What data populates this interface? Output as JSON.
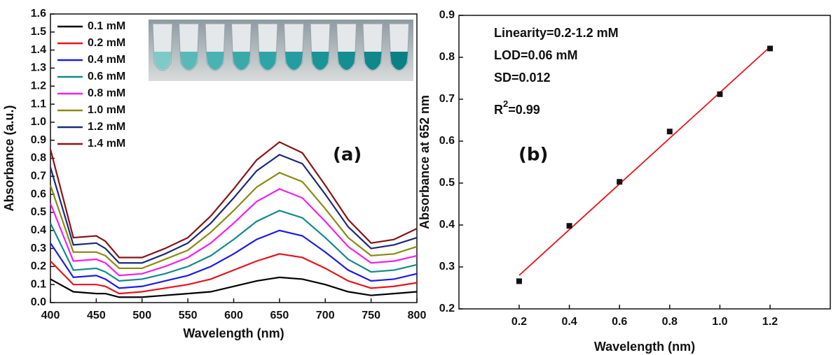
{
  "chart_data": [
    {
      "type": "line",
      "panel_label": "(a)",
      "x_label": "Wavelength (nm)",
      "y_label": "Absorbance (a.u.)",
      "x": [
        400,
        425,
        450,
        460,
        475,
        500,
        525,
        550,
        575,
        600,
        625,
        650,
        675,
        700,
        725,
        750,
        775,
        800
      ],
      "series": [
        {
          "name": "0.1 mM",
          "color": "#000000",
          "values": [
            0.13,
            0.06,
            0.05,
            0.05,
            0.03,
            0.03,
            0.04,
            0.05,
            0.06,
            0.09,
            0.12,
            0.14,
            0.13,
            0.1,
            0.06,
            0.04,
            0.05,
            0.06
          ]
        },
        {
          "name": "0.2 mM",
          "color": "#e8141c",
          "values": [
            0.23,
            0.1,
            0.1,
            0.09,
            0.05,
            0.06,
            0.08,
            0.1,
            0.13,
            0.18,
            0.23,
            0.27,
            0.25,
            0.19,
            0.12,
            0.08,
            0.09,
            0.11
          ]
        },
        {
          "name": "0.4 mM",
          "color": "#1c1ce8",
          "values": [
            0.33,
            0.14,
            0.15,
            0.13,
            0.08,
            0.09,
            0.12,
            0.15,
            0.2,
            0.27,
            0.35,
            0.4,
            0.37,
            0.28,
            0.18,
            0.12,
            0.13,
            0.16
          ]
        },
        {
          "name": "0.6 mM",
          "color": "#138a8a",
          "values": [
            0.44,
            0.18,
            0.19,
            0.17,
            0.12,
            0.13,
            0.16,
            0.2,
            0.26,
            0.35,
            0.45,
            0.51,
            0.47,
            0.36,
            0.24,
            0.17,
            0.18,
            0.21
          ]
        },
        {
          "name": "0.8 mM",
          "color": "#f020f0",
          "values": [
            0.55,
            0.23,
            0.24,
            0.22,
            0.15,
            0.16,
            0.2,
            0.25,
            0.33,
            0.44,
            0.56,
            0.63,
            0.58,
            0.45,
            0.31,
            0.22,
            0.23,
            0.26
          ]
        },
        {
          "name": "1.0 mM",
          "color": "#8a8a14",
          "values": [
            0.65,
            0.28,
            0.28,
            0.26,
            0.19,
            0.19,
            0.24,
            0.29,
            0.39,
            0.51,
            0.64,
            0.72,
            0.67,
            0.52,
            0.36,
            0.26,
            0.27,
            0.31
          ]
        },
        {
          "name": "1.2 mM",
          "color": "#1a2a7a",
          "values": [
            0.75,
            0.32,
            0.33,
            0.3,
            0.22,
            0.22,
            0.27,
            0.33,
            0.44,
            0.58,
            0.73,
            0.82,
            0.77,
            0.6,
            0.42,
            0.3,
            0.32,
            0.36
          ]
        },
        {
          "name": "1.4 mM",
          "color": "#8a1414",
          "values": [
            0.85,
            0.36,
            0.37,
            0.34,
            0.25,
            0.25,
            0.3,
            0.36,
            0.48,
            0.63,
            0.79,
            0.89,
            0.83,
            0.65,
            0.46,
            0.33,
            0.35,
            0.41
          ]
        }
      ],
      "xlim": [
        400,
        800
      ],
      "xticks": [
        400,
        450,
        500,
        550,
        600,
        650,
        700,
        750,
        800
      ],
      "ylim": [
        0,
        1.6
      ],
      "yticks": [
        {
          "value": 0,
          "label": "0.0"
        },
        0.1,
        0.2,
        0.3,
        0.4,
        0.5,
        0.6,
        0.7,
        0.8,
        0.9,
        {
          "value": 1,
          "label": "1.0"
        },
        1.1,
        1.2,
        1.3,
        1.4,
        1.5,
        1.6
      ],
      "legend": "upper left"
    },
    {
      "type": "scatter",
      "panel_label": "(b)",
      "x_label": "Wavelength (nm)",
      "y_label": "Absorbance at 652 nm",
      "annotations": [
        "Linearity=0.2-1.2 mM",
        "LOD=0.06 mM",
        "SD=0.012"
      ],
      "r_squared": {
        "base": "R",
        "sup": "2",
        "rest": "=0.99"
      },
      "x": [
        0.2,
        0.4,
        0.6,
        0.8,
        1.0,
        1.2
      ],
      "values": [
        0.266,
        0.398,
        0.503,
        0.623,
        0.712,
        0.821
      ],
      "color": "#111111",
      "fit_line": {
        "x": [
          0.2,
          1.2
        ],
        "values": [
          0.28,
          0.825
        ],
        "color": "#e8141c"
      },
      "xlim": [
        -0.04,
        1.44
      ],
      "xticks": [
        0.2,
        0.4,
        0.6,
        0.8,
        {
          "value": 1,
          "label": "1.0"
        },
        1.2
      ],
      "ylim": [
        0.2,
        0.9
      ],
      "yticks": [
        0.2,
        0.3,
        0.4,
        0.5,
        0.6,
        0.7,
        0.8,
        0.9
      ]
    }
  ]
}
